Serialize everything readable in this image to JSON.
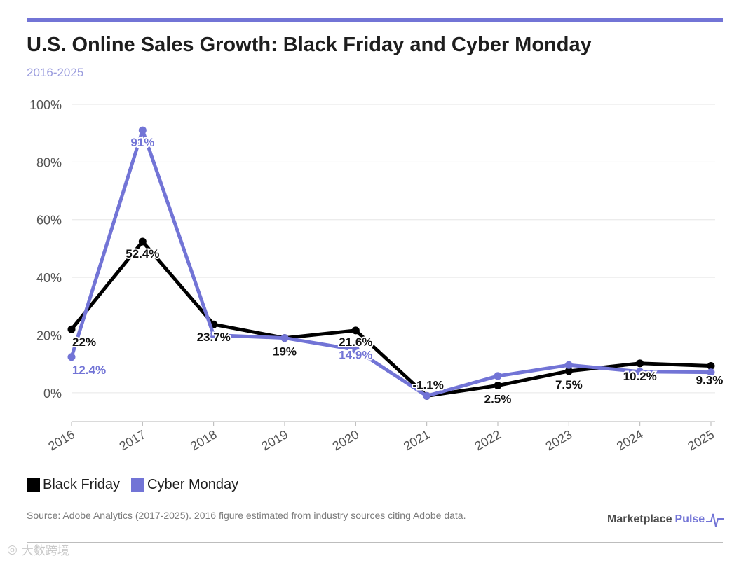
{
  "header": {
    "title": "U.S. Online Sales Growth: Black Friday and Cyber Monday",
    "subtitle": "2016-2025"
  },
  "colors": {
    "accent": "#7274d6",
    "black_friday": "#000000",
    "cyber_monday": "#7274d6"
  },
  "chart_data": {
    "type": "line",
    "title": "U.S. Online Sales Growth: Black Friday and Cyber Monday",
    "subtitle": "2016-2025",
    "x": [
      "2016",
      "2017",
      "2018",
      "2019",
      "2020",
      "2021",
      "2022",
      "2023",
      "2024",
      "2025"
    ],
    "ylim": [
      -10,
      100
    ],
    "yticks": [
      0,
      20,
      40,
      60,
      80,
      100
    ],
    "ytick_labels": [
      "0%",
      "20%",
      "40%",
      "60%",
      "80%",
      "100%"
    ],
    "grid": true,
    "legend_position": "bottom-left",
    "series": [
      {
        "name": "Black Friday",
        "color": "#000000",
        "values": [
          22,
          52.4,
          23.7,
          19,
          21.6,
          -1.1,
          2.5,
          7.5,
          10.2,
          9.3
        ],
        "labels": [
          "22%",
          "52.4%",
          "23.7%",
          "19%",
          "21.6%",
          "-1.1%",
          "2.5%",
          "7.5%",
          "10.2%",
          "9.3%"
        ]
      },
      {
        "name": "Cyber Monday",
        "color": "#7274d6",
        "values": [
          12.4,
          91,
          20,
          19,
          14.9,
          -1.1,
          5.8,
          9.6,
          7.3,
          7.1
        ],
        "labels": [
          "12.4%",
          "91%",
          null,
          null,
          "14.9%",
          null,
          null,
          null,
          null,
          null
        ]
      }
    ]
  },
  "legend": {
    "items": [
      "Black Friday",
      "Cyber Monday"
    ]
  },
  "footer": {
    "source": "Source: Adobe Analytics (2017-2025). 2016 figure estimated from industry sources citing Adobe data.",
    "brand_main": "Marketplace",
    "brand_accent": "Pulse",
    "watermark": "大数跨境"
  }
}
